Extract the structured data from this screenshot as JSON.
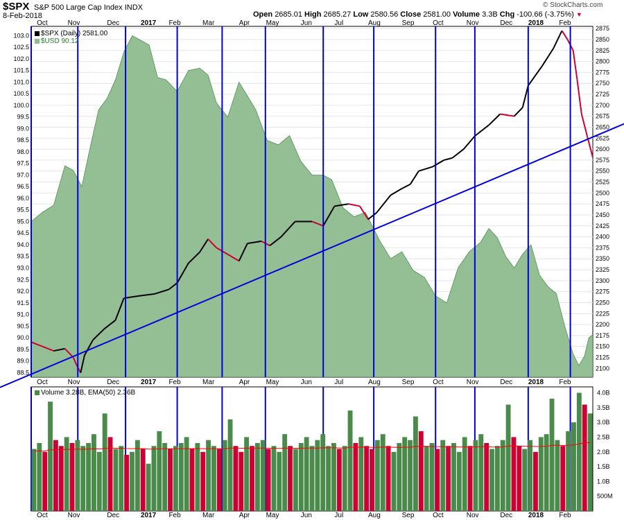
{
  "header": {
    "ticker": "$SPX",
    "name": "S&P 500 Large Cap Index",
    "exchange": "INDX",
    "date": "8-Feb-2018",
    "open_label": "Open",
    "open": "2685.01",
    "high_label": "High",
    "high": "2685.27",
    "low_label": "Low",
    "low": "2580.56",
    "close_label": "Close",
    "close": "2581.00",
    "volume_label": "Volume",
    "volume": "3.3B",
    "chg_label": "Chg",
    "chg": "-100.66 (-3.75%)",
    "watermark": "© StockCharts.com"
  },
  "legend": {
    "spx": "$SPX (Daily) 2581.00",
    "usd": "$USD 90.12",
    "volume": "Volume 3.28B, EMA(50) 2.36B"
  },
  "colors": {
    "usd_fill": "#8fbc8f",
    "usd_line": "#4a8a4a",
    "trendline": "#0000dd",
    "vlines": "#0000dd",
    "up": "#000000",
    "down": "#cc0033",
    "vol_up": "#4a8a4a",
    "vol_down": "#cc0033",
    "ema": "#ff0000"
  },
  "chart_data": {
    "type": "line",
    "x_axis_labels": [
      "Oct",
      "Nov",
      "Dec",
      "2017",
      "Feb",
      "Mar",
      "Apr",
      "May",
      "Jun",
      "Jul",
      "Aug",
      "Sep",
      "Oct",
      "Nov",
      "Dec",
      "2018",
      "Feb"
    ],
    "right_axis": {
      "ticks": [
        2100,
        2125,
        2150,
        2175,
        2200,
        2225,
        2250,
        2275,
        2300,
        2325,
        2350,
        2375,
        2400,
        2425,
        2450,
        2475,
        2500,
        2525,
        2550,
        2575,
        2600,
        2625,
        2650,
        2675,
        2700,
        2725,
        2750,
        2775,
        2800,
        2825,
        2850,
        2875
      ],
      "range": [
        2080,
        2880
      ]
    },
    "left_axis": {
      "ticks": [
        "88.5",
        "89.0",
        "89.5",
        "90.0",
        "90.5",
        "91.0",
        "91.5",
        "92.0",
        "92.5",
        "93.0",
        "93.5",
        "94.0",
        "94.5",
        "95.0",
        "95.5",
        "96.0",
        "96.5",
        "97.0",
        "97.5",
        "98.0",
        "98.5",
        "99.0",
        "99.5",
        "100.0",
        "100.5",
        "101.0",
        "101.5",
        "102.0",
        "102.5",
        "103.0"
      ],
      "range": [
        88.3,
        103.4
      ]
    },
    "volume_axis": {
      "ticks": [
        "500M",
        "1.0B",
        "1.5B",
        "2.0B",
        "2.5B",
        "3.0B",
        "3.5B",
        "4.0B"
      ],
      "range": [
        0,
        4.2
      ]
    },
    "series": [
      {
        "name": "$SPX",
        "values": [
          [
            0.0,
            2160
          ],
          [
            0.02,
            2150
          ],
          [
            0.04,
            2140
          ],
          [
            0.06,
            2145
          ],
          [
            0.075,
            2125
          ],
          [
            0.08,
            2110
          ],
          [
            0.088,
            2090
          ],
          [
            0.095,
            2130
          ],
          [
            0.11,
            2165
          ],
          [
            0.13,
            2190
          ],
          [
            0.15,
            2210
          ],
          [
            0.165,
            2260
          ],
          [
            0.19,
            2265
          ],
          [
            0.22,
            2270
          ],
          [
            0.245,
            2280
          ],
          [
            0.26,
            2295
          ],
          [
            0.28,
            2340
          ],
          [
            0.3,
            2365
          ],
          [
            0.315,
            2395
          ],
          [
            0.33,
            2375
          ],
          [
            0.35,
            2360
          ],
          [
            0.37,
            2345
          ],
          [
            0.385,
            2385
          ],
          [
            0.41,
            2390
          ],
          [
            0.425,
            2380
          ],
          [
            0.445,
            2400
          ],
          [
            0.47,
            2435
          ],
          [
            0.5,
            2435
          ],
          [
            0.52,
            2425
          ],
          [
            0.54,
            2470
          ],
          [
            0.565,
            2475
          ],
          [
            0.585,
            2470
          ],
          [
            0.6,
            2440
          ],
          [
            0.615,
            2455
          ],
          [
            0.64,
            2495
          ],
          [
            0.66,
            2510
          ],
          [
            0.675,
            2520
          ],
          [
            0.69,
            2550
          ],
          [
            0.715,
            2560
          ],
          [
            0.735,
            2575
          ],
          [
            0.75,
            2580
          ],
          [
            0.77,
            2600
          ],
          [
            0.79,
            2630
          ],
          [
            0.815,
            2655
          ],
          [
            0.835,
            2680
          ],
          [
            0.86,
            2675
          ],
          [
            0.875,
            2695
          ],
          [
            0.885,
            2745
          ],
          [
            0.91,
            2790
          ],
          [
            0.93,
            2830
          ],
          [
            0.945,
            2870
          ],
          [
            0.955,
            2850
          ],
          [
            0.965,
            2825
          ],
          [
            0.972,
            2760
          ],
          [
            0.98,
            2680
          ],
          [
            0.99,
            2630
          ],
          [
            1.0,
            2581
          ]
        ]
      },
      {
        "name": "$USD",
        "values": [
          [
            0.0,
            95.0
          ],
          [
            0.02,
            95.4
          ],
          [
            0.04,
            95.7
          ],
          [
            0.06,
            97.4
          ],
          [
            0.075,
            97.2
          ],
          [
            0.09,
            96.5
          ],
          [
            0.105,
            98.2
          ],
          [
            0.12,
            99.8
          ],
          [
            0.135,
            100.3
          ],
          [
            0.15,
            101.1
          ],
          [
            0.165,
            102.3
          ],
          [
            0.18,
            103.0
          ],
          [
            0.195,
            102.8
          ],
          [
            0.21,
            102.6
          ],
          [
            0.225,
            101.2
          ],
          [
            0.24,
            101.1
          ],
          [
            0.26,
            100.6
          ],
          [
            0.28,
            101.5
          ],
          [
            0.3,
            101.6
          ],
          [
            0.315,
            101.3
          ],
          [
            0.33,
            100.1
          ],
          [
            0.35,
            99.5
          ],
          [
            0.37,
            101.0
          ],
          [
            0.385,
            100.4
          ],
          [
            0.4,
            99.8
          ],
          [
            0.42,
            98.5
          ],
          [
            0.44,
            98.3
          ],
          [
            0.46,
            98.7
          ],
          [
            0.48,
            97.6
          ],
          [
            0.5,
            97.0
          ],
          [
            0.52,
            97.0
          ],
          [
            0.535,
            96.8
          ],
          [
            0.555,
            95.6
          ],
          [
            0.575,
            95.2
          ],
          [
            0.595,
            95.4
          ],
          [
            0.62,
            94.2
          ],
          [
            0.64,
            93.4
          ],
          [
            0.66,
            93.7
          ],
          [
            0.68,
            92.9
          ],
          [
            0.7,
            92.6
          ],
          [
            0.72,
            91.8
          ],
          [
            0.74,
            91.5
          ],
          [
            0.76,
            93.0
          ],
          [
            0.78,
            93.7
          ],
          [
            0.8,
            94.1
          ],
          [
            0.815,
            94.7
          ],
          [
            0.83,
            94.3
          ],
          [
            0.845,
            93.5
          ],
          [
            0.86,
            93.0
          ],
          [
            0.875,
            93.6
          ],
          [
            0.89,
            94.0
          ],
          [
            0.905,
            92.7
          ],
          [
            0.92,
            92.2
          ],
          [
            0.935,
            91.9
          ],
          [
            0.95,
            90.5
          ],
          [
            0.965,
            89.3
          ],
          [
            0.975,
            88.8
          ],
          [
            0.985,
            89.2
          ],
          [
            0.993,
            90.0
          ],
          [
            1.0,
            90.12
          ]
        ]
      },
      {
        "name": "Volume",
        "values": [
          2.1,
          2.3,
          2.0,
          3.7,
          2.4,
          2.2,
          2.5,
          2.3,
          2.4,
          2.2,
          2.3,
          2.6,
          2.0,
          3.3,
          2.5,
          2.1,
          2.2,
          1.9,
          2.0,
          2.4,
          2.1,
          1.6,
          2.2,
          2.7,
          2.3,
          2.1,
          2.2,
          2.3,
          2.5,
          2.1,
          2.3,
          2.0,
          2.4,
          2.2,
          2.1,
          2.4,
          3.1,
          2.2,
          2.0,
          2.5,
          2.2,
          2.3,
          2.4,
          2.1,
          2.2,
          2.0,
          2.6,
          2.2,
          2.1,
          2.3,
          2.5,
          2.2,
          2.4,
          2.6,
          2.2,
          2.3,
          2.1,
          2.2,
          3.4,
          2.3,
          2.5,
          2.2,
          2.1,
          2.4,
          2.6,
          2.2,
          2.0,
          2.3,
          2.5,
          2.4,
          3.2,
          2.7,
          2.2,
          2.3,
          2.1,
          2.4,
          2.2,
          2.3,
          2.0,
          2.5,
          2.2,
          2.4,
          2.6,
          2.3,
          2.1,
          2.2,
          2.4,
          3.6,
          2.5,
          2.2,
          2.1,
          2.4,
          2.0,
          2.5,
          2.6,
          3.8,
          2.4,
          2.2,
          2.7,
          3.0,
          4.0,
          3.6,
          3.3
        ]
      }
    ],
    "trendline": [
      [
        -0.105,
        2030
      ],
      [
        1.06,
        2660
      ]
    ],
    "vertical_markers": [
      0.0,
      0.083,
      0.168,
      0.26,
      0.34,
      0.417,
      0.52,
      0.61,
      0.72,
      0.79,
      0.885,
      0.96
    ],
    "grid": true
  }
}
